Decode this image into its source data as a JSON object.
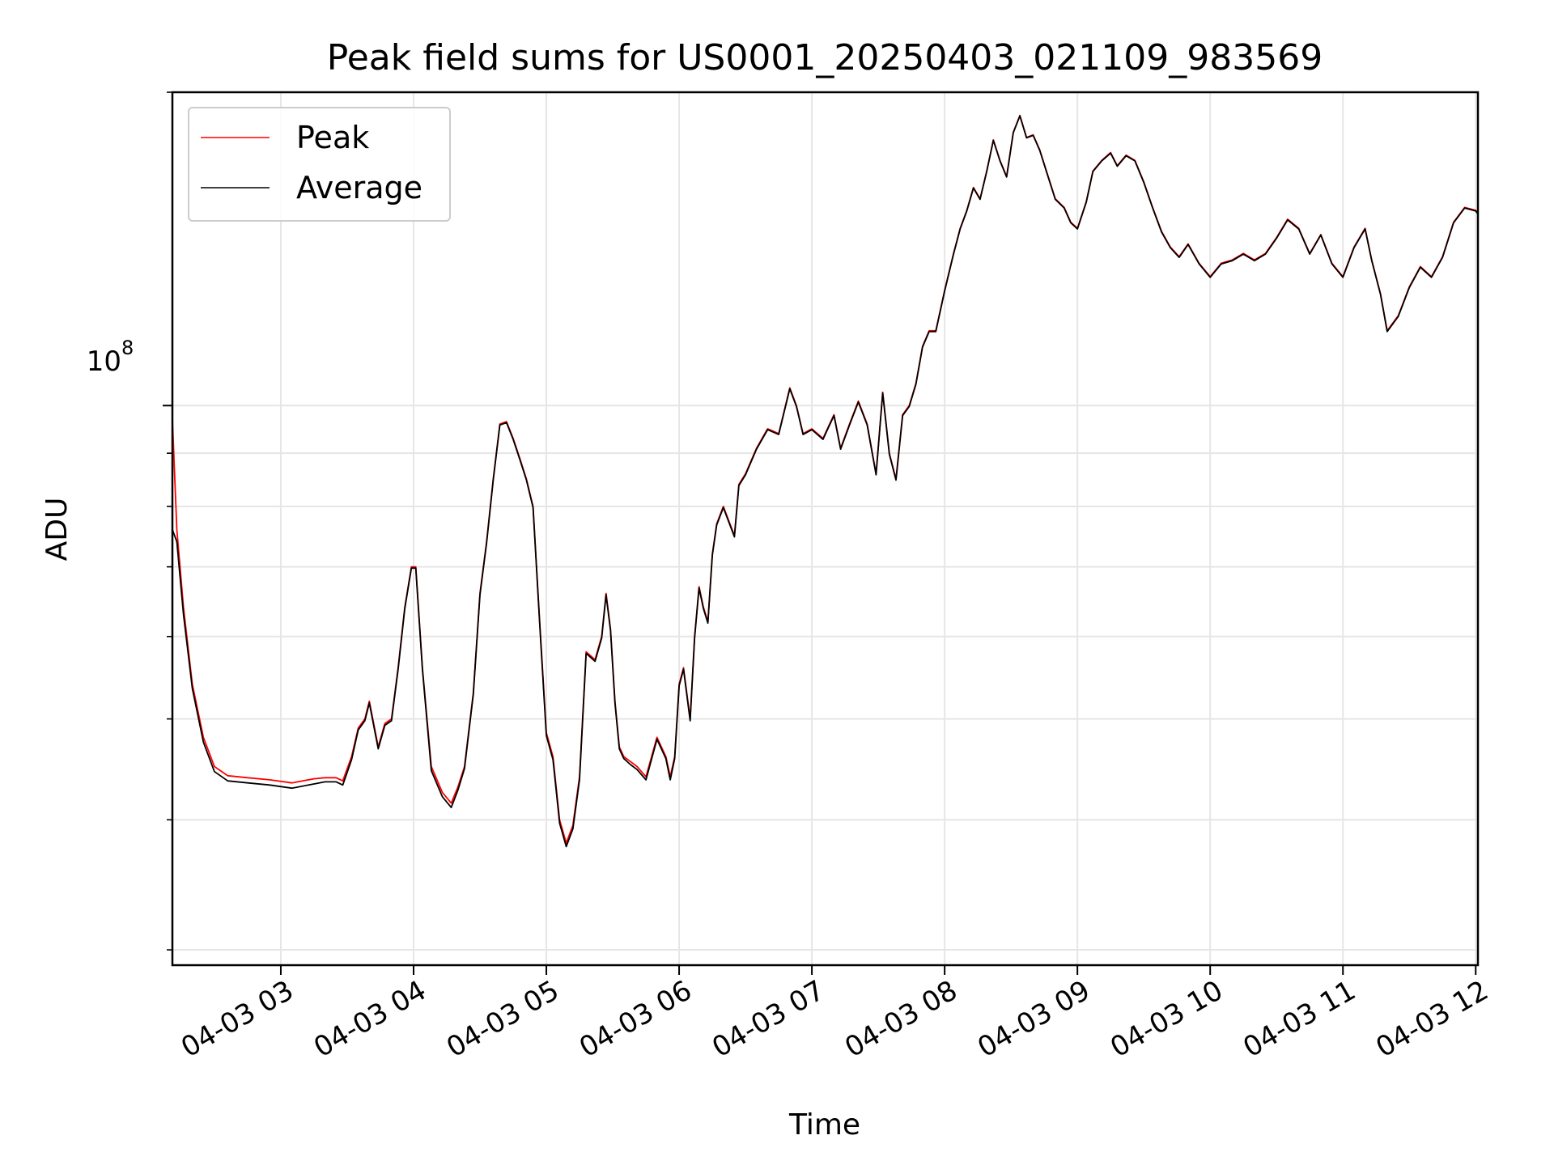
{
  "chart_data": {
    "type": "line",
    "title": "Peak field sums for US0001_20250403_021109_983569",
    "xlabel": "Time",
    "ylabel": "ADU",
    "x_axis": {
      "kind": "datetime",
      "range": [
        "2025-04-03 02:11",
        "2025-04-03 12:01"
      ],
      "tick_labels": [
        "04-03 03",
        "04-03 04",
        "04-03 05",
        "04-03 06",
        "04-03 07",
        "04-03 08",
        "04-03 09",
        "04-03 10",
        "04-03 11",
        "04-03 12"
      ],
      "tick_values": [
        "2025-04-03 03:00",
        "2025-04-03 04:00",
        "2025-04-03 05:00",
        "2025-04-03 06:00",
        "2025-04-03 07:00",
        "2025-04-03 08:00",
        "2025-04-03 09:00",
        "2025-04-03 10:00",
        "2025-04-03 11:00",
        "2025-04-03 12:00"
      ]
    },
    "y_axis": {
      "scale": "log",
      "range": [
        29000000,
        200000000
      ],
      "major_tick_label": {
        "base": "10",
        "exponent": "8"
      },
      "major_tick_value": 100000000,
      "minor_tick_values": [
        30000000,
        40000000,
        50000000,
        60000000,
        70000000,
        80000000,
        90000000,
        200000000
      ]
    },
    "grid": true,
    "legend_position": "top-left",
    "series": [
      {
        "name": "Peak",
        "color": "#ff0000",
        "x": [
          "2025-04-03 02:11",
          "2025-04-03 02:13",
          "2025-04-03 02:16",
          "2025-04-03 02:20",
          "2025-04-03 02:25",
          "2025-04-03 02:30",
          "2025-04-03 02:36",
          "2025-04-03 02:45",
          "2025-04-03 02:55",
          "2025-04-03 03:05",
          "2025-04-03 03:15",
          "2025-04-03 03:20",
          "2025-04-03 03:25",
          "2025-04-03 03:28",
          "2025-04-03 03:32",
          "2025-04-03 03:35",
          "2025-04-03 03:38",
          "2025-04-03 03:40",
          "2025-04-03 03:44",
          "2025-04-03 03:47",
          "2025-04-03 03:50",
          "2025-04-03 03:53",
          "2025-04-03 03:56",
          "2025-04-03 03:59",
          "2025-04-03 04:01",
          "2025-04-03 04:04",
          "2025-04-03 04:08",
          "2025-04-03 04:13",
          "2025-04-03 04:17",
          "2025-04-03 04:20",
          "2025-04-03 04:23",
          "2025-04-03 04:27",
          "2025-04-03 04:30",
          "2025-04-03 04:33",
          "2025-04-03 04:36",
          "2025-04-03 04:39",
          "2025-04-03 04:42",
          "2025-04-03 04:45",
          "2025-04-03 04:48",
          "2025-04-03 04:51",
          "2025-04-03 04:54",
          "2025-04-03 04:57",
          "2025-04-03 05:00",
          "2025-04-03 05:03",
          "2025-04-03 05:06",
          "2025-04-03 05:09",
          "2025-04-03 05:12",
          "2025-04-03 05:15",
          "2025-04-03 05:18",
          "2025-04-03 05:22",
          "2025-04-03 05:25",
          "2025-04-03 05:27",
          "2025-04-03 05:29",
          "2025-04-03 05:31",
          "2025-04-03 05:33",
          "2025-04-03 05:35",
          "2025-04-03 05:38",
          "2025-04-03 05:41",
          "2025-04-03 05:45",
          "2025-04-03 05:50",
          "2025-04-03 05:54",
          "2025-04-03 05:56",
          "2025-04-03 05:58",
          "2025-04-03 06:00",
          "2025-04-03 06:02",
          "2025-04-03 06:05",
          "2025-04-03 06:07",
          "2025-04-03 06:09",
          "2025-04-03 06:11",
          "2025-04-03 06:13",
          "2025-04-03 06:15",
          "2025-04-03 06:17",
          "2025-04-03 06:20",
          "2025-04-03 06:25",
          "2025-04-03 06:27",
          "2025-04-03 06:30",
          "2025-04-03 06:35",
          "2025-04-03 06:40",
          "2025-04-03 06:45",
          "2025-04-03 06:50",
          "2025-04-03 06:53",
          "2025-04-03 06:56",
          "2025-04-03 07:00",
          "2025-04-03 07:05",
          "2025-04-03 07:08",
          "2025-04-03 07:10",
          "2025-04-03 07:13",
          "2025-04-03 07:17",
          "2025-04-03 07:21",
          "2025-04-03 07:25",
          "2025-04-03 07:29",
          "2025-04-03 07:32",
          "2025-04-03 07:35",
          "2025-04-03 07:38",
          "2025-04-03 07:41",
          "2025-04-03 07:44",
          "2025-04-03 07:47",
          "2025-04-03 07:50",
          "2025-04-03 07:53",
          "2025-04-03 07:56",
          "2025-04-03 08:00",
          "2025-04-03 08:04",
          "2025-04-03 08:07",
          "2025-04-03 08:10",
          "2025-04-03 08:13",
          "2025-04-03 08:16",
          "2025-04-03 08:19",
          "2025-04-03 08:22",
          "2025-04-03 08:25",
          "2025-04-03 08:28",
          "2025-04-03 08:31",
          "2025-04-03 08:34",
          "2025-04-03 08:37",
          "2025-04-03 08:40",
          "2025-04-03 08:43",
          "2025-04-03 08:46",
          "2025-04-03 08:50",
          "2025-04-03 08:54",
          "2025-04-03 08:57",
          "2025-04-03 09:00",
          "2025-04-03 09:04",
          "2025-04-03 09:07",
          "2025-04-03 09:11",
          "2025-04-03 09:15",
          "2025-04-03 09:18",
          "2025-04-03 09:22",
          "2025-04-03 09:26",
          "2025-04-03 09:30",
          "2025-04-03 09:34",
          "2025-04-03 09:38",
          "2025-04-03 09:42",
          "2025-04-03 09:46",
          "2025-04-03 09:50",
          "2025-04-03 09:55",
          "2025-04-03 10:00",
          "2025-04-03 10:05",
          "2025-04-03 10:10",
          "2025-04-03 10:15",
          "2025-04-03 10:20",
          "2025-04-03 10:25",
          "2025-04-03 10:30",
          "2025-04-03 10:35",
          "2025-04-03 10:40",
          "2025-04-03 10:45",
          "2025-04-03 10:50",
          "2025-04-03 10:55",
          "2025-04-03 11:00",
          "2025-04-03 11:05",
          "2025-04-03 11:10",
          "2025-04-03 11:13",
          "2025-04-03 11:17",
          "2025-04-03 11:20",
          "2025-04-03 11:25",
          "2025-04-03 11:30",
          "2025-04-03 11:35",
          "2025-04-03 11:40",
          "2025-04-03 11:45",
          "2025-04-03 11:50",
          "2025-04-03 11:55",
          "2025-04-03 12:00",
          "2025-04-03 12:01"
        ],
        "y": [
          97000000,
          76000000,
          64000000,
          54000000,
          48000000,
          45000000,
          44100000,
          43900000,
          43700000,
          43400000,
          43800000,
          43900000,
          43900000,
          43600000,
          46000000,
          49000000,
          50000000,
          52000000,
          47000000,
          49500000,
          50000000,
          56000000,
          64000000,
          70000000,
          70000000,
          56000000,
          45000000,
          42500000,
          41500000,
          43000000,
          45000000,
          53000000,
          66000000,
          74000000,
          85000000,
          96000000,
          96500000,
          93000000,
          89000000,
          85000000,
          80000000,
          62000000,
          48500000,
          46000000,
          40000000,
          38000000,
          39500000,
          44000000,
          58000000,
          57000000,
          60000000,
          66000000,
          61000000,
          52000000,
          47000000,
          46000000,
          45500000,
          45000000,
          44000000,
          48000000,
          46000000,
          44000000,
          46000000,
          54000000,
          56000000,
          50000000,
          60000000,
          67000000,
          64000000,
          62000000,
          72000000,
          77000000,
          80000000,
          75000000,
          84000000,
          86000000,
          91000000,
          95000000,
          94000000,
          104000000,
          100000000,
          94000000,
          95000000,
          93000000,
          96000000,
          98000000,
          91000000,
          96000000,
          101000000,
          96000000,
          86000000,
          103000000,
          90000000,
          85000000,
          98000000,
          100000000,
          105000000,
          114000000,
          118000000,
          118000000,
          129000000,
          140000000,
          148000000,
          154000000,
          162000000,
          158000000,
          168000000,
          180000000,
          172000000,
          166000000,
          183000000,
          190000000,
          181000000,
          182000000,
          176000000,
          168000000,
          158000000,
          155000000,
          150000000,
          148000000,
          157000000,
          168000000,
          172000000,
          175000000,
          170000000,
          174000000,
          172000000,
          164000000,
          155000000,
          147000000,
          142000000,
          139000000,
          143000000,
          137000000,
          133000000,
          137000000,
          138000000,
          140000000,
          138000000,
          140000000,
          145000000,
          151000000,
          148000000,
          140000000,
          146000000,
          137000000,
          133000000,
          142000000,
          148000000,
          138000000,
          128000000,
          118000000,
          122000000,
          130000000,
          136000000,
          133000000,
          139000000,
          150000000,
          155000000,
          154000000,
          153000000
        ]
      },
      {
        "name": "Average",
        "color": "#000000",
        "x": [
          "2025-04-03 02:11",
          "2025-04-03 02:13",
          "2025-04-03 02:16",
          "2025-04-03 02:20",
          "2025-04-03 02:25",
          "2025-04-03 02:30",
          "2025-04-03 02:36",
          "2025-04-03 02:45",
          "2025-04-03 02:55",
          "2025-04-03 03:05",
          "2025-04-03 03:15",
          "2025-04-03 03:20",
          "2025-04-03 03:25",
          "2025-04-03 03:28",
          "2025-04-03 03:32",
          "2025-04-03 03:35",
          "2025-04-03 03:38",
          "2025-04-03 03:40",
          "2025-04-03 03:44",
          "2025-04-03 03:47",
          "2025-04-03 03:50",
          "2025-04-03 03:53",
          "2025-04-03 03:56",
          "2025-04-03 03:59",
          "2025-04-03 04:01",
          "2025-04-03 04:04",
          "2025-04-03 04:08",
          "2025-04-03 04:13",
          "2025-04-03 04:17",
          "2025-04-03 04:20",
          "2025-04-03 04:23",
          "2025-04-03 04:27",
          "2025-04-03 04:30",
          "2025-04-03 04:33",
          "2025-04-03 04:36",
          "2025-04-03 04:39",
          "2025-04-03 04:42",
          "2025-04-03 04:45",
          "2025-04-03 04:48",
          "2025-04-03 04:51",
          "2025-04-03 04:54",
          "2025-04-03 04:57",
          "2025-04-03 05:00",
          "2025-04-03 05:03",
          "2025-04-03 05:06",
          "2025-04-03 05:09",
          "2025-04-03 05:12",
          "2025-04-03 05:15",
          "2025-04-03 05:18",
          "2025-04-03 05:22",
          "2025-04-03 05:25",
          "2025-04-03 05:27",
          "2025-04-03 05:29",
          "2025-04-03 05:31",
          "2025-04-03 05:33",
          "2025-04-03 05:35",
          "2025-04-03 05:38",
          "2025-04-03 05:41",
          "2025-04-03 05:45",
          "2025-04-03 05:50",
          "2025-04-03 05:54",
          "2025-04-03 05:56",
          "2025-04-03 05:58",
          "2025-04-03 06:00",
          "2025-04-03 06:02",
          "2025-04-03 06:05",
          "2025-04-03 06:07",
          "2025-04-03 06:09",
          "2025-04-03 06:11",
          "2025-04-03 06:13",
          "2025-04-03 06:15",
          "2025-04-03 06:17",
          "2025-04-03 06:20",
          "2025-04-03 06:25",
          "2025-04-03 06:27",
          "2025-04-03 06:30",
          "2025-04-03 06:35",
          "2025-04-03 06:40",
          "2025-04-03 06:45",
          "2025-04-03 06:50",
          "2025-04-03 06:53",
          "2025-04-03 06:56",
          "2025-04-03 07:00",
          "2025-04-03 07:05",
          "2025-04-03 07:08",
          "2025-04-03 07:10",
          "2025-04-03 07:13",
          "2025-04-03 07:17",
          "2025-04-03 07:21",
          "2025-04-03 07:25",
          "2025-04-03 07:29",
          "2025-04-03 07:32",
          "2025-04-03 07:35",
          "2025-04-03 07:38",
          "2025-04-03 07:41",
          "2025-04-03 07:44",
          "2025-04-03 07:47",
          "2025-04-03 07:50",
          "2025-04-03 07:53",
          "2025-04-03 07:56",
          "2025-04-03 08:00",
          "2025-04-03 08:04",
          "2025-04-03 08:07",
          "2025-04-03 08:10",
          "2025-04-03 08:13",
          "2025-04-03 08:16",
          "2025-04-03 08:19",
          "2025-04-03 08:22",
          "2025-04-03 08:25",
          "2025-04-03 08:28",
          "2025-04-03 08:31",
          "2025-04-03 08:34",
          "2025-04-03 08:37",
          "2025-04-03 08:40",
          "2025-04-03 08:43",
          "2025-04-03 08:46",
          "2025-04-03 08:50",
          "2025-04-03 08:54",
          "2025-04-03 08:57",
          "2025-04-03 09:00",
          "2025-04-03 09:04",
          "2025-04-03 09:07",
          "2025-04-03 09:11",
          "2025-04-03 09:15",
          "2025-04-03 09:18",
          "2025-04-03 09:22",
          "2025-04-03 09:26",
          "2025-04-03 09:30",
          "2025-04-03 09:34",
          "2025-04-03 09:38",
          "2025-04-03 09:42",
          "2025-04-03 09:46",
          "2025-04-03 09:50",
          "2025-04-03 09:55",
          "2025-04-03 10:00",
          "2025-04-03 10:05",
          "2025-04-03 10:10",
          "2025-04-03 10:15",
          "2025-04-03 10:20",
          "2025-04-03 10:25",
          "2025-04-03 10:30",
          "2025-04-03 10:35",
          "2025-04-03 10:40",
          "2025-04-03 10:45",
          "2025-04-03 10:50",
          "2025-04-03 10:55",
          "2025-04-03 11:00",
          "2025-04-03 11:05",
          "2025-04-03 11:10",
          "2025-04-03 11:13",
          "2025-04-03 11:17",
          "2025-04-03 11:20",
          "2025-04-03 11:25",
          "2025-04-03 11:30",
          "2025-04-03 11:35",
          "2025-04-03 11:40",
          "2025-04-03 11:45",
          "2025-04-03 11:50",
          "2025-04-03 11:55",
          "2025-04-03 12:00",
          "2025-04-03 12:01"
        ],
        "y": [
          76000000,
          74000000,
          63000000,
          53500000,
          47500000,
          44500000,
          43600000,
          43400000,
          43200000,
          42900000,
          43300000,
          43500000,
          43500000,
          43200000,
          45700000,
          48800000,
          49800000,
          51800000,
          46800000,
          49300000,
          49800000,
          55800000,
          63800000,
          69800000,
          69800000,
          55800000,
          44600000,
          42100000,
          41100000,
          42700000,
          44800000,
          52800000,
          65800000,
          73800000,
          84800000,
          95800000,
          96300000,
          92800000,
          88800000,
          84800000,
          79800000,
          61700000,
          48200000,
          45700000,
          39700000,
          37700000,
          39200000,
          43700000,
          57800000,
          56800000,
          59800000,
          65800000,
          60800000,
          51800000,
          46800000,
          45800000,
          45200000,
          44700000,
          43700000,
          47800000,
          45800000,
          43700000,
          45800000,
          53800000,
          55800000,
          49800000,
          59800000,
          66800000,
          63800000,
          61800000,
          71800000,
          76800000,
          79800000,
          74800000,
          83800000,
          85800000,
          90800000,
          94800000,
          93800000,
          103800000,
          99800000,
          93800000,
          94800000,
          92800000,
          95800000,
          97800000,
          90800000,
          95800000,
          100800000,
          95800000,
          85800000,
          102800000,
          89800000,
          84800000,
          97800000,
          99800000,
          104800000,
          113800000,
          117800000,
          117800000,
          128800000,
          139800000,
          147800000,
          153800000,
          161800000,
          157800000,
          167800000,
          179800000,
          171800000,
          165800000,
          182800000,
          189800000,
          180800000,
          181800000,
          175800000,
          167800000,
          157800000,
          154800000,
          149800000,
          147800000,
          156800000,
          167800000,
          171800000,
          174800000,
          169800000,
          173800000,
          171800000,
          163800000,
          154800000,
          146800000,
          141800000,
          138800000,
          142800000,
          136800000,
          132800000,
          136800000,
          137800000,
          139800000,
          137800000,
          139800000,
          144800000,
          150800000,
          147800000,
          139800000,
          145800000,
          136800000,
          132800000,
          141800000,
          147800000,
          137800000,
          127800000,
          117800000,
          121800000,
          129800000,
          135800000,
          132800000,
          138800000,
          149800000,
          154800000,
          153800000,
          152800000
        ]
      }
    ]
  }
}
